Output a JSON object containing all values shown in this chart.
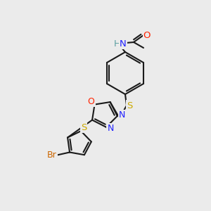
{
  "bg_color": "#ebebeb",
  "bond_color": "#1a1a1a",
  "colors": {
    "N": "#2020ff",
    "O": "#ff2200",
    "S": "#ccaa00",
    "Br": "#cc6600",
    "C": "#1a1a1a",
    "H": "#5a9ea0"
  },
  "lw": 1.5,
  "font_size": 9.5
}
